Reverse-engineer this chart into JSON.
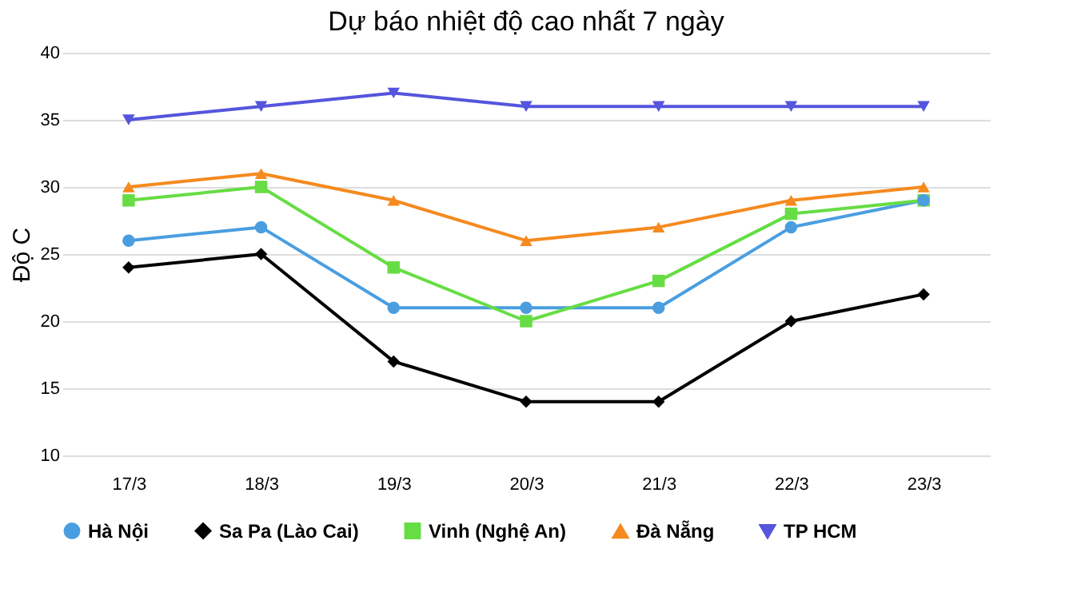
{
  "chart_data": {
    "type": "line",
    "title": "Dự báo nhiệt độ cao nhất 7 ngày",
    "ylabel": "Độ C",
    "categories": [
      "17/3",
      "18/3",
      "19/3",
      "20/3",
      "21/3",
      "22/3",
      "23/3"
    ],
    "series": [
      {
        "name": "Hà Nội",
        "color": "#4a9ee0",
        "marker": "circle",
        "values": [
          26,
          27,
          21,
          21,
          21,
          27,
          29
        ]
      },
      {
        "name": "Sa Pa (Lào Cai)",
        "color": "#000000",
        "marker": "diamond",
        "values": [
          24,
          25,
          17,
          14,
          14,
          20,
          22
        ]
      },
      {
        "name": "Vinh (Nghệ An)",
        "color": "#66dd44",
        "marker": "square",
        "values": [
          29,
          30,
          24,
          20,
          23,
          28,
          29
        ]
      },
      {
        "name": "Đà Nẵng",
        "color": "#f58a1f",
        "marker": "triangle",
        "values": [
          30,
          31,
          29,
          26,
          27,
          29,
          30
        ]
      },
      {
        "name": "TP HCM",
        "color": "#5555dd",
        "marker": "triangle-down",
        "values": [
          35,
          36,
          37,
          36,
          36,
          36,
          36
        ]
      }
    ],
    "ylim": [
      10,
      40
    ],
    "yticks": [
      10,
      15,
      20,
      25,
      30,
      35,
      40
    ],
    "grid": "y",
    "legend": "bottom",
    "line_style": "solid"
  }
}
